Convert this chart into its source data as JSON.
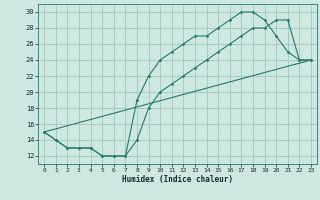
{
  "xlabel": "Humidex (Indice chaleur)",
  "xlim": [
    -0.5,
    23.5
  ],
  "ylim": [
    11,
    31
  ],
  "yticks": [
    12,
    14,
    16,
    18,
    20,
    22,
    24,
    26,
    28,
    30
  ],
  "xticks": [
    0,
    1,
    2,
    3,
    4,
    5,
    6,
    7,
    8,
    9,
    10,
    11,
    12,
    13,
    14,
    15,
    16,
    17,
    18,
    19,
    20,
    21,
    22,
    23
  ],
  "bg_color": "#cce8e0",
  "grid_color": "#a0c8be",
  "line_color": "#2a7a6a",
  "line1_x": [
    0,
    1,
    2,
    3,
    4,
    5,
    6,
    7,
    8,
    9,
    10,
    11,
    12,
    13,
    14,
    15,
    16,
    17,
    18,
    19,
    20,
    21,
    22,
    23
  ],
  "line1_y": [
    15,
    14,
    13,
    13,
    13,
    12,
    12,
    12,
    19,
    22,
    24,
    25,
    26,
    27,
    27,
    28,
    29,
    30,
    30,
    29,
    27,
    25,
    24,
    24
  ],
  "line2_x": [
    0,
    1,
    2,
    3,
    4,
    5,
    6,
    7,
    8,
    9,
    10,
    11,
    12,
    13,
    14,
    15,
    16,
    17,
    18,
    19,
    20,
    21,
    22,
    23
  ],
  "line2_y": [
    15,
    14,
    13,
    13,
    13,
    12,
    12,
    12,
    14,
    18,
    20,
    21,
    22,
    23,
    24,
    25,
    26,
    27,
    28,
    28,
    29,
    29,
    24,
    24
  ],
  "line3_x": [
    0,
    23
  ],
  "line3_y": [
    15,
    24
  ]
}
